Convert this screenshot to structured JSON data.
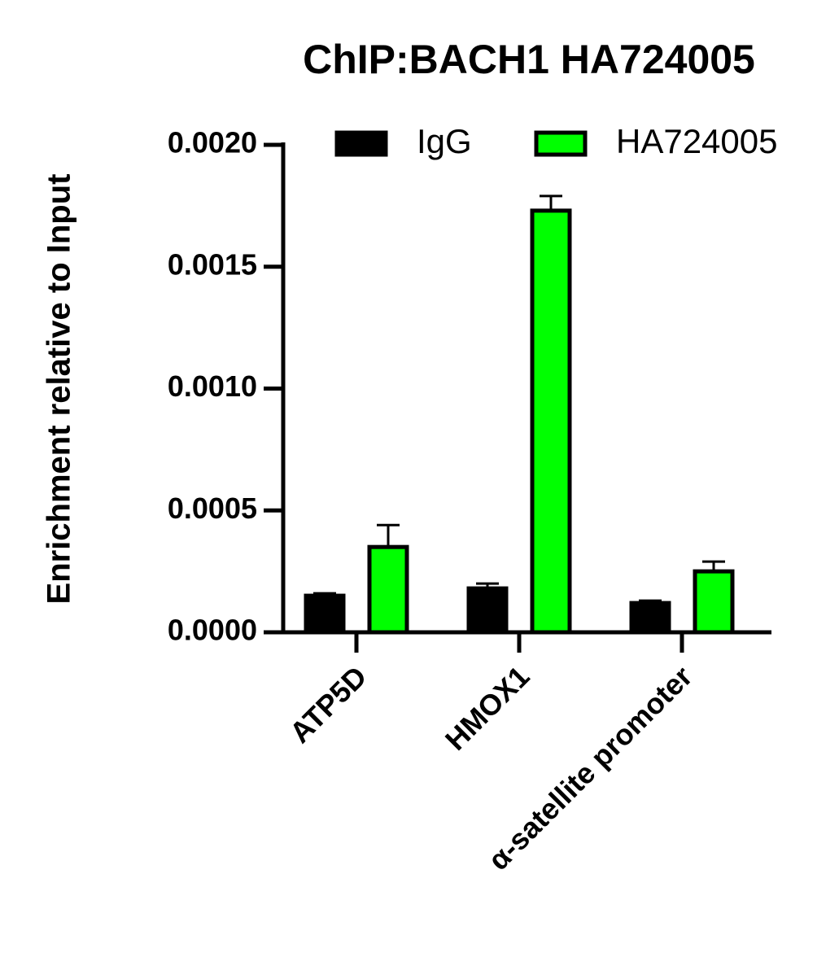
{
  "chart_data": {
    "type": "bar",
    "title": "ChIP:BACH1 HA724005",
    "y_label": "Enrichment relative to Input",
    "categories": [
      "ATP5D",
      "HMOX1",
      "α-satellite promoter"
    ],
    "series": [
      {
        "name": "IgG",
        "color": "#000000",
        "values": [
          0.00015,
          0.00018,
          0.00012
        ],
        "errors": [
          1e-05,
          2e-05,
          1e-05
        ]
      },
      {
        "name": "HA724005",
        "color": "#00ff00",
        "values": [
          0.00035,
          0.00173,
          0.00025
        ],
        "errors": [
          9e-05,
          6e-05,
          4e-05
        ]
      }
    ],
    "ylim": [
      0,
      0.002
    ],
    "yticks": [
      {
        "value": 0,
        "label": "0.0000"
      },
      {
        "value": 0.0005,
        "label": "0.0005"
      },
      {
        "value": 0.001,
        "label": "0.0010"
      },
      {
        "value": 0.0015,
        "label": "0.0015"
      },
      {
        "value": 0.002,
        "label": "0.0020"
      }
    ],
    "legend": "top-right"
  }
}
